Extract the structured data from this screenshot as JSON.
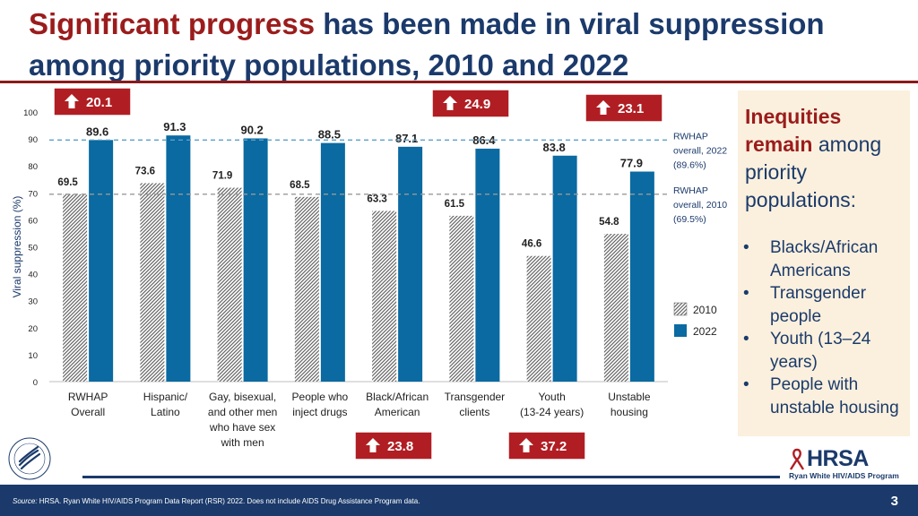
{
  "title": {
    "highlight": "Significant progress",
    "rest_line1": " has been made in viral suppression",
    "line2": "among priority populations, 2010 and 2022"
  },
  "chart_data": {
    "type": "bar",
    "ylabel": "Viral suppression (%)",
    "ylim": [
      0,
      100
    ],
    "yticks": [
      0,
      10,
      20,
      30,
      40,
      50,
      60,
      70,
      80,
      90,
      100
    ],
    "categories": [
      [
        "RWHAP",
        "Overall"
      ],
      [
        "Hispanic/",
        "Latino"
      ],
      [
        "Gay, bisexual,",
        "and other men",
        "who have sex",
        "with men"
      ],
      [
        "People who",
        "inject drugs"
      ],
      [
        "Black/African",
        "American"
      ],
      [
        "Transgender",
        "clients"
      ],
      [
        "Youth",
        "(13-24 years)"
      ],
      [
        "Unstable",
        "housing"
      ]
    ],
    "series": [
      {
        "name": "2010",
        "values": [
          69.5,
          73.6,
          71.9,
          68.5,
          63.3,
          61.5,
          46.6,
          54.8
        ],
        "pattern": "hatched"
      },
      {
        "name": "2022",
        "values": [
          89.6,
          91.3,
          90.2,
          88.5,
          87.1,
          86.4,
          83.8,
          77.9
        ],
        "color": "#0a6aa1"
      }
    ],
    "reference_lines": [
      {
        "value": 89.6,
        "label": [
          "RWHAP",
          "overall, 2022",
          "(89.6%)"
        ]
      },
      {
        "value": 69.5,
        "label": [
          "RWHAP",
          "overall, 2010",
          "(69.5%)"
        ]
      }
    ],
    "increase_callouts": [
      {
        "category_index": 0,
        "value": "20.1"
      },
      {
        "category_index": 4,
        "value": "23.8"
      },
      {
        "category_index": 5,
        "value": "24.9"
      },
      {
        "category_index": 6,
        "value": "37.2"
      },
      {
        "category_index": 7,
        "value": "23.1"
      }
    ],
    "legend": [
      "2010",
      "2022"
    ]
  },
  "sidebar": {
    "heading_highlight": "Inequities",
    "heading_highlight2": "remain",
    "heading_rest": " among priority populations:",
    "bullets": [
      "Blacks/African Americans",
      "Transgender people",
      "Youth (13–24 years)",
      "People with unstable housing"
    ]
  },
  "footer": {
    "source_label": "Source:",
    "source_text": " HRSA. Ryan White HIV/AIDS Program Data Report (RSR) 2022. Does not include AIDS Drug Assistance Program data.",
    "page_number": "3"
  },
  "logo": {
    "name": "HRSA",
    "program": "Ryan White HIV/AIDS Program"
  },
  "colors": {
    "navy": "#1b3a6b",
    "red": "#9b1c1c",
    "bar2022": "#0a6aa1",
    "callout": "#b01e23",
    "panel": "#fbf0dd"
  }
}
